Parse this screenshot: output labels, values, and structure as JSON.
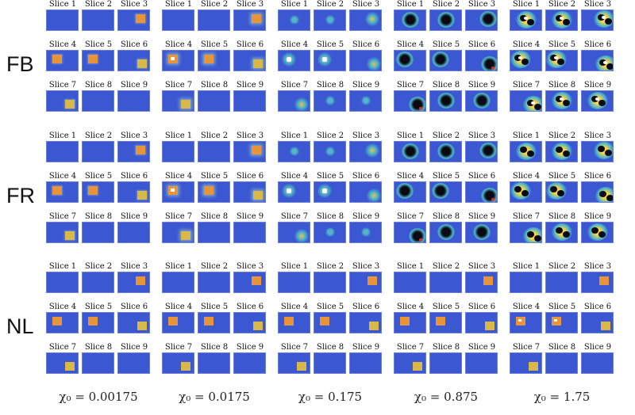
{
  "rows": [
    {
      "label": "FB",
      "kind": "feedback"
    },
    {
      "label": "FR",
      "kind": "fixed_reg"
    },
    {
      "label": "NL",
      "kind": "nonlinear"
    }
  ],
  "columns": [
    {
      "label": "χ₀ = 0.00175",
      "level": 0
    },
    {
      "label": "χ₀ = 0.0175",
      "level": 1
    },
    {
      "label": "χ₀ = 0.175",
      "level": 2
    },
    {
      "label": "χ₀ = 0.875",
      "level": 3
    },
    {
      "label": "χ₀ = 1.75",
      "level": 4
    }
  ],
  "slice_labels": [
    "Slice 1",
    "Slice 2",
    "Slice 3",
    "Slice 4",
    "Slice 5",
    "Slice 6",
    "Slice 7",
    "Slice 8",
    "Slice 9"
  ],
  "colors": {
    "background": "#3b57d1",
    "target_orange": "#e8943a",
    "target_yellow": "#d9b84a",
    "cyan": "#4fb7c9",
    "dark": "#0a0a14",
    "white": "#ffffff",
    "red": "#d8322a"
  }
}
